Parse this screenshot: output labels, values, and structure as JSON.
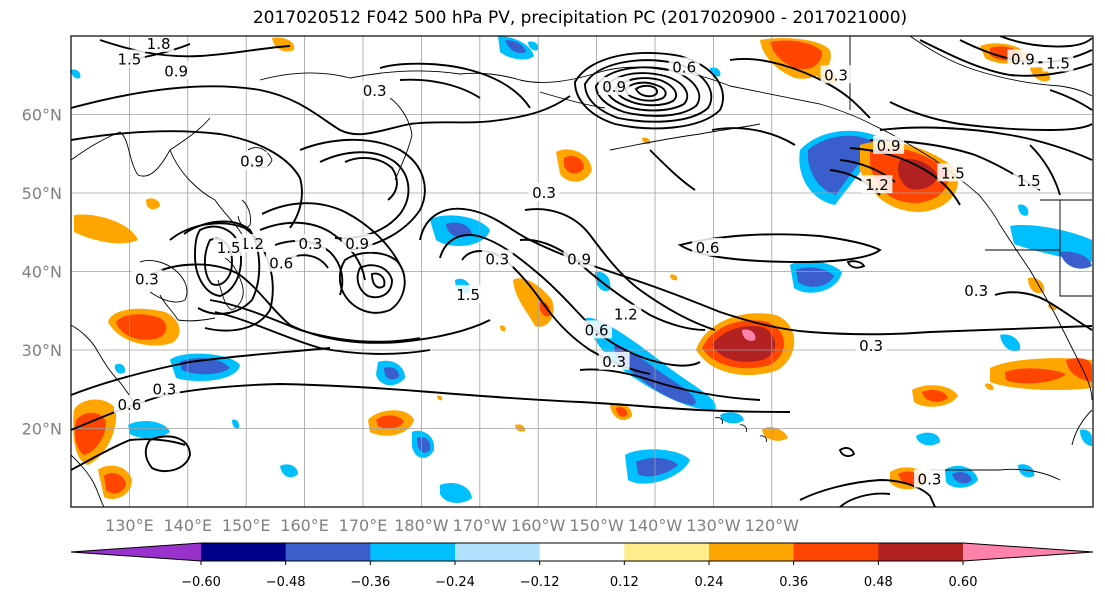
{
  "title": "2017020512 F042 500 hPa PV, precipitation PC (2017020900 - 2017021000)",
  "map": {
    "projection": "cylindrical",
    "lon_range": [
      120,
      295
    ],
    "lat_range": [
      10,
      70
    ],
    "lat_ticks": [
      {
        "value": 20,
        "label": "20°N"
      },
      {
        "value": 30,
        "label": "30°N"
      },
      {
        "value": 40,
        "label": "40°N"
      },
      {
        "value": 50,
        "label": "50°N"
      },
      {
        "value": 60,
        "label": "60°N"
      }
    ],
    "lon_ticks": [
      {
        "value": 130,
        "label": "130°E"
      },
      {
        "value": 140,
        "label": "140°E"
      },
      {
        "value": 150,
        "label": "150°E"
      },
      {
        "value": 160,
        "label": "160°E"
      },
      {
        "value": 170,
        "label": "170°E"
      },
      {
        "value": 180,
        "label": "180°W"
      },
      {
        "value": 190,
        "label": "170°W"
      },
      {
        "value": 200,
        "label": "160°W"
      },
      {
        "value": 210,
        "label": "150°W"
      },
      {
        "value": 220,
        "label": "140°W"
      },
      {
        "value": 230,
        "label": "130°W"
      },
      {
        "value": 240,
        "label": "120°W"
      }
    ],
    "grid": true
  },
  "colorbar": {
    "colors": [
      "#9932cc",
      "#00008b",
      "#3a5fcd",
      "#00bfff",
      "#b0e2ff",
      "#ffffff",
      "#ffec8b",
      "#ffa500",
      "#ff4500",
      "#b22222",
      "#ff82ab"
    ],
    "tick_labels": [
      "−0.60",
      "−0.48",
      "−0.36",
      "−0.24",
      "−0.12",
      "0.12",
      "0.24",
      "0.36",
      "0.48",
      "0.60"
    ],
    "extend": "both"
  },
  "contour_labels": [
    {
      "text": "1.5",
      "lon": 130,
      "lat": 67
    },
    {
      "text": "1.8",
      "lon": 135,
      "lat": 69
    },
    {
      "text": "0.9",
      "lon": 138,
      "lat": 65.5
    },
    {
      "text": "0.9",
      "lon": 151,
      "lat": 54
    },
    {
      "text": "0.3",
      "lon": 172,
      "lat": 63
    },
    {
      "text": "1.2",
      "lon": 151,
      "lat": 43.5
    },
    {
      "text": "0.3",
      "lon": 161,
      "lat": 43.5
    },
    {
      "text": "0.9",
      "lon": 169,
      "lat": 43.5
    },
    {
      "text": "0.6",
      "lon": 156,
      "lat": 41
    },
    {
      "text": "1.5",
      "lon": 147,
      "lat": 43
    },
    {
      "text": "1.5",
      "lon": 188,
      "lat": 37
    },
    {
      "text": "0.3",
      "lon": 193,
      "lat": 41.5
    },
    {
      "text": "0.9",
      "lon": 207,
      "lat": 41.5
    },
    {
      "text": "1.2",
      "lon": 215,
      "lat": 34.5
    },
    {
      "text": "0.6",
      "lon": 210,
      "lat": 32.5
    },
    {
      "text": "0.3",
      "lon": 213,
      "lat": 28.5
    },
    {
      "text": "0.3",
      "lon": 201,
      "lat": 50
    },
    {
      "text": "0.6",
      "lon": 229,
      "lat": 43
    },
    {
      "text": "0.3",
      "lon": 257,
      "lat": 30.5
    },
    {
      "text": "0.9",
      "lon": 260,
      "lat": 56
    },
    {
      "text": "1.5",
      "lon": 271,
      "lat": 52.5
    },
    {
      "text": "1.5",
      "lon": 284,
      "lat": 51.5
    },
    {
      "text": "0.3",
      "lon": 275,
      "lat": 37.5
    },
    {
      "text": "1.2",
      "lon": 258,
      "lat": 51
    },
    {
      "text": "0.3",
      "lon": 251,
      "lat": 65
    },
    {
      "text": "0.6",
      "lon": 225,
      "lat": 66
    },
    {
      "text": "0.9",
      "lon": 213,
      "lat": 63.5
    },
    {
      "text": "0.3",
      "lon": 133,
      "lat": 39
    },
    {
      "text": "0.3",
      "lon": 136,
      "lat": 25
    },
    {
      "text": "0.6",
      "lon": 130,
      "lat": 23
    },
    {
      "text": "0.3",
      "lon": 267,
      "lat": 13.5
    },
    {
      "text": "0.9",
      "lon": 283,
      "lat": 67
    },
    {
      "text": "1.5",
      "lon": 289,
      "lat": 66.5
    }
  ]
}
